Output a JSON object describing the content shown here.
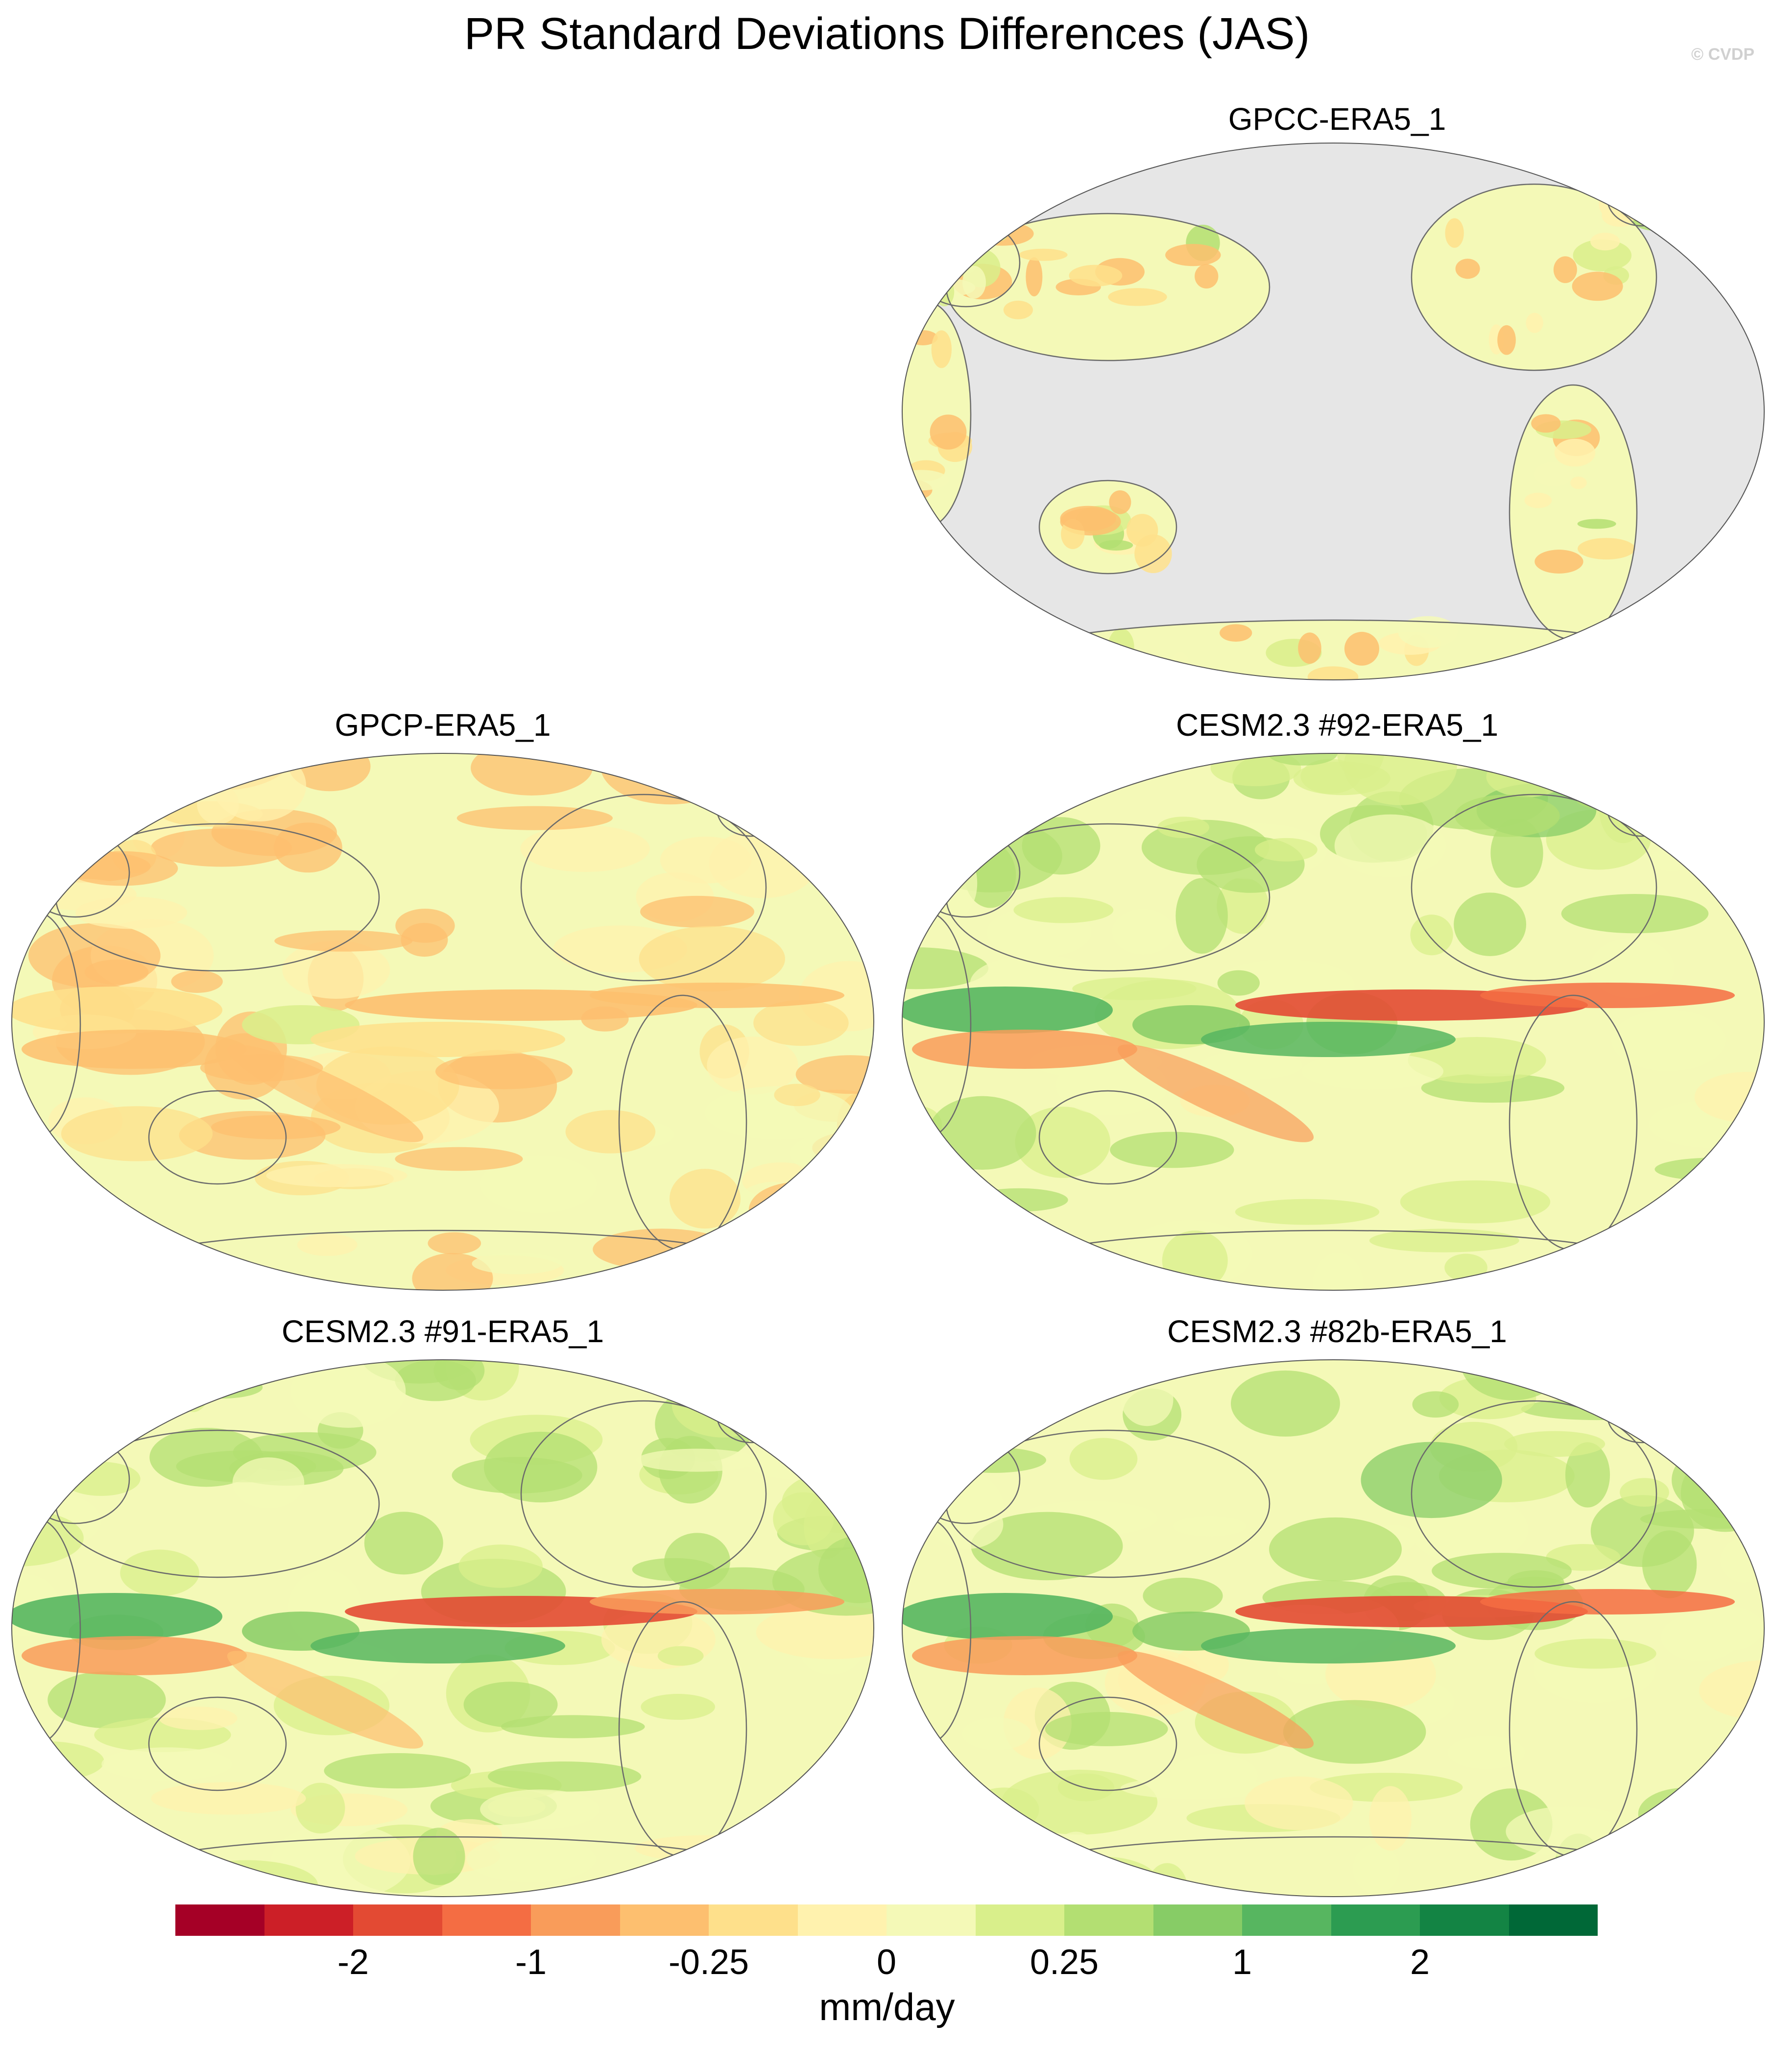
{
  "title": "PR Standard Deviations Differences (JAS)",
  "copyright": "© CVDP",
  "panels": [
    {
      "label": "GPCC-ERA5_1",
      "style": "land",
      "bias": [
        -0.05,
        0.0,
        -0.1,
        -0.2
      ],
      "equatorial": {
        "west_green": 0.0,
        "central_red": 0.0,
        "east_red": 0.0
      }
    },
    {
      "label": "GPCP-ERA5_1",
      "style": "full",
      "bias": [
        -0.55,
        -0.45,
        -0.35,
        -0.3
      ],
      "equatorial": {
        "west_green": -0.4,
        "central_red": -0.6,
        "east_red": -0.8
      }
    },
    {
      "label": "CESM2.3 #92-ERA5_1",
      "style": "full",
      "bias": [
        0.5,
        0.6,
        0.2,
        0.3
      ],
      "equatorial": {
        "west_green": 1.8,
        "central_red": -2.2,
        "east_red": -1.6
      }
    },
    {
      "label": "CESM2.3 #91-ERA5_1",
      "style": "full",
      "bias": [
        0.4,
        0.6,
        0.2,
        0.3
      ],
      "equatorial": {
        "west_green": 2.0,
        "central_red": -2.0,
        "east_red": -1.4
      }
    },
    {
      "label": "CESM2.3 #82b-ERA5_1",
      "style": "full",
      "bias": [
        0.45,
        0.6,
        0.2,
        0.3
      ],
      "equatorial": {
        "west_green": 1.9,
        "central_red": -2.1,
        "east_red": -1.5
      }
    }
  ],
  "colorbar": {
    "colors": [
      "#a50026",
      "#cc1f27",
      "#e34a33",
      "#f46d43",
      "#f99c5a",
      "#fdbf6f",
      "#fee08b",
      "#fff2ae",
      "#f4f9b7",
      "#d9ef8b",
      "#b3df72",
      "#87cc66",
      "#57b660",
      "#2c9c51",
      "#138444",
      "#006837"
    ],
    "labels": [
      "-2",
      "-1",
      "-0.25",
      "0",
      "0.25",
      "1",
      "2"
    ],
    "label_boundaries": [
      2,
      4,
      6,
      8,
      10,
      12,
      14
    ]
  },
  "units": "mm/day",
  "land_color": "#e6e6e6"
}
